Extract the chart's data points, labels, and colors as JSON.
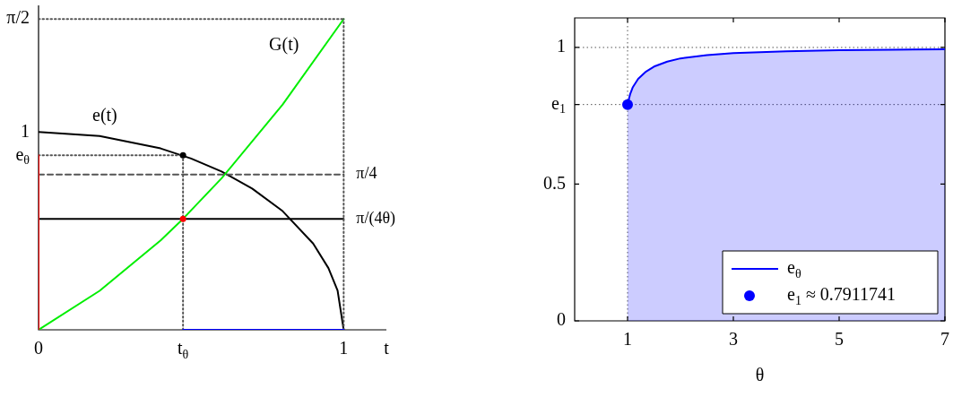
{
  "chart_data": [
    {
      "type": "line",
      "xlim": [
        0,
        1.14
      ],
      "ylim": [
        0,
        1.64
      ],
      "xlabel": "t",
      "grid": false,
      "legend": false,
      "marker": "none",
      "xticks": [
        {
          "value": 0,
          "label": "0"
        },
        {
          "value": 0.4735,
          "label": "t$_{θ}$"
        },
        {
          "value": 1,
          "label": "1"
        }
      ],
      "yticks": [
        {
          "value": 0,
          "label": null
        },
        {
          "value": 0.882,
          "label": "e$_{θ}$"
        },
        {
          "value": 1,
          "label": "1"
        },
        {
          "value": 1.571,
          "label": "π/2"
        }
      ],
      "series": [
        {
          "name": "e(t)",
          "type": "line",
          "color": "#000000",
          "x": [
            0,
            0.2,
            0.4,
            0.5,
            0.6,
            0.7,
            0.8,
            0.9,
            0.95,
            0.98,
            1
          ],
          "values": [
            1,
            0.98,
            0.917,
            0.866,
            0.8,
            0.714,
            0.6,
            0.436,
            0.312,
            0.199,
            0
          ]
        },
        {
          "name": "G(t)",
          "type": "line",
          "color": "#00ee00",
          "x": [
            0,
            0.2,
            0.4,
            0.4735,
            0.6,
            0.8,
            1
          ],
          "values": [
            0,
            0.197,
            0.452,
            0.561,
            0.766,
            1.139,
            1.571
          ]
        },
        {
          "name": "π/4",
          "type": "line",
          "color": "#555555",
          "line_style": "dashed",
          "x": [
            0,
            1
          ],
          "values": [
            0.785,
            0.785
          ]
        },
        {
          "name": "π/(4θ)",
          "type": "line",
          "color": "#000000",
          "x": [
            0,
            1
          ],
          "values": [
            0.561,
            0.561
          ]
        },
        {
          "type": "line",
          "color": "#555555",
          "line_style": "dotted",
          "x": [
            0,
            1
          ],
          "values": [
            1.571,
            1.571
          ]
        },
        {
          "type": "line",
          "color": "#555555",
          "line_style": "dotted",
          "x": [
            1,
            1
          ],
          "values": [
            0,
            1.571
          ]
        },
        {
          "type": "line",
          "color": "#555555",
          "line_style": "dotted",
          "x": [
            0,
            0.4735
          ],
          "values": [
            0.882,
            0.882
          ]
        },
        {
          "type": "line",
          "color": "#555555",
          "line_style": "dotted",
          "x": [
            0.4735,
            0.4735
          ],
          "values": [
            0,
            0.882
          ]
        },
        {
          "type": "line",
          "color": "#ff0000",
          "x": [
            0,
            0
          ],
          "values": [
            0,
            0.882
          ]
        },
        {
          "type": "line",
          "color": "#0000ff",
          "x": [
            0.4735,
            1
          ],
          "values": [
            0,
            0
          ]
        },
        {
          "type": "scatter",
          "color": "#000000",
          "marker": "circle",
          "x": [
            0.4735
          ],
          "values": [
            0.882
          ]
        },
        {
          "type": "scatter",
          "color": "#ff0000",
          "marker": "circle",
          "x": [
            0.4735
          ],
          "values": [
            0.561
          ]
        }
      ]
    },
    {
      "type": "area",
      "xlim": [
        0,
        7
      ],
      "ylim": [
        0,
        1.108
      ],
      "xlabel": "θ",
      "grid": false,
      "legend": "bottom right",
      "xticks": [
        1,
        3,
        5,
        7
      ],
      "yticks": [
        0,
        0.5,
        {
          "value": 0.7911741,
          "label": "e$_{1}$"
        },
        1
      ],
      "ref_lines": [
        {
          "axis": "x",
          "value": 1,
          "line_style": "dotted",
          "color": "#555555"
        },
        {
          "axis": "y",
          "value": 0.7911741,
          "line_style": "dotted",
          "color": "#555555"
        },
        {
          "axis": "y",
          "value": 1,
          "line_style": "dotted",
          "color": "#555555"
        }
      ],
      "series": [
        {
          "name": "e$_{θ}$",
          "type": "area",
          "color": "#0000ff",
          "x": [
            1,
            1.05,
            1.1,
            1.2,
            1.35,
            1.5,
            1.75,
            2,
            2.5,
            3,
            4,
            5,
            6,
            7
          ],
          "values": [
            0.7911741,
            0.83,
            0.855,
            0.885,
            0.912,
            0.93,
            0.948,
            0.96,
            0.972,
            0.979,
            0.986,
            0.99,
            0.992,
            0.993
          ]
        },
        {
          "name": "e$_{1}$ ≈ 0.7911741",
          "type": "scatter",
          "color": "#0000ff",
          "marker": "circle",
          "x": [
            1
          ],
          "values": [
            0.7911741
          ]
        }
      ]
    }
  ]
}
